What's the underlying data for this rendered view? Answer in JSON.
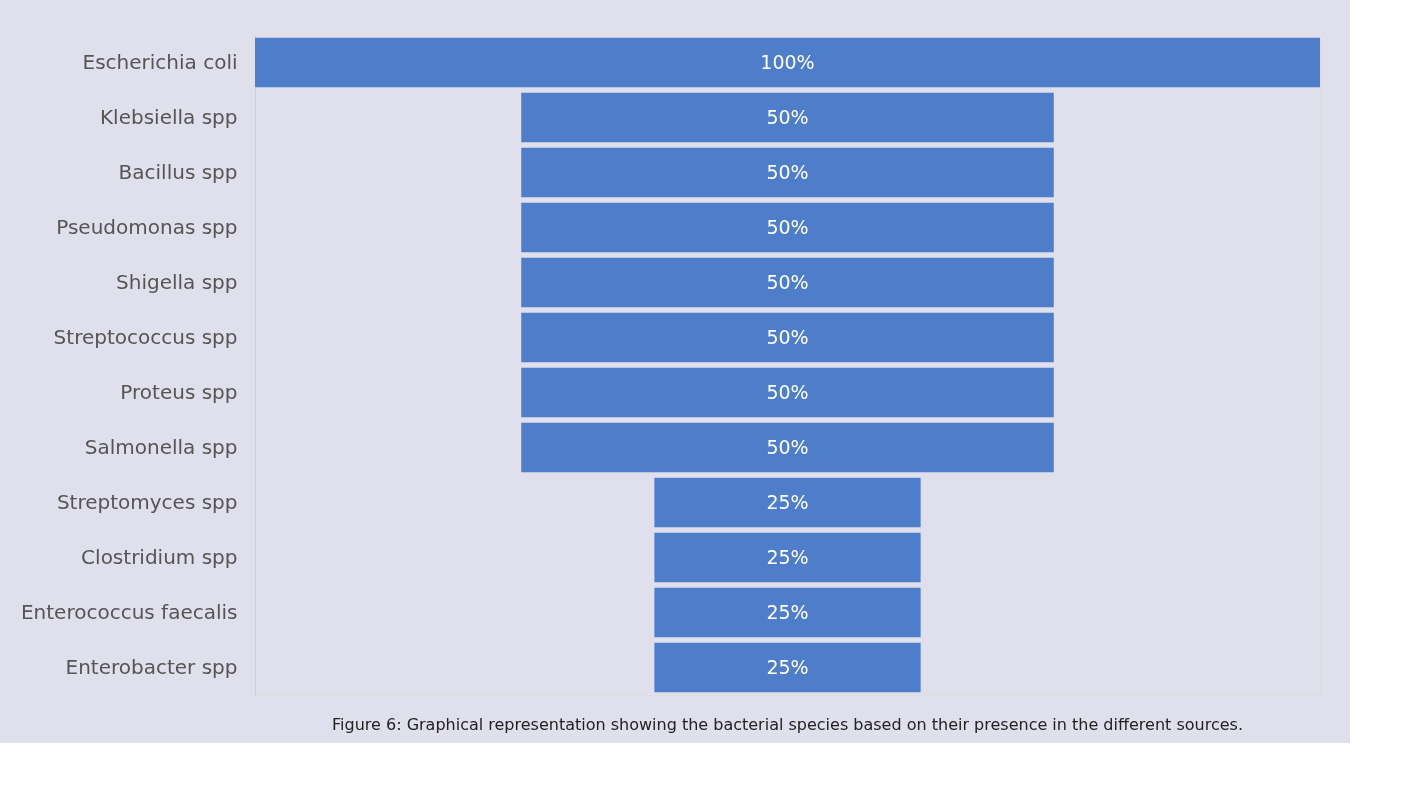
{
  "chart_data": {
    "type": "other",
    "categories": [
      "Escherichia coli",
      "Klebsiella spp",
      "Bacillus spp",
      "Pseudomonas spp",
      "Shigella spp",
      "Streptococcus spp",
      "Proteus spp",
      "Salmonella spp",
      "Streptomyces spp",
      "Clostridium spp",
      "Enterococcus faecalis",
      "Enterobacter spp"
    ],
    "values": [
      100,
      50,
      50,
      50,
      50,
      50,
      50,
      50,
      25,
      25,
      25,
      25
    ],
    "value_labels": [
      "100%",
      "50%",
      "50%",
      "50%",
      "50%",
      "50%",
      "50%",
      "50%",
      "25%",
      "25%",
      "25%",
      "25%"
    ],
    "color": "#4e7dca",
    "annotations": [
      "Figure 6: Graphical representation showing the bacterial species based on their presence in the different sources."
    ]
  }
}
